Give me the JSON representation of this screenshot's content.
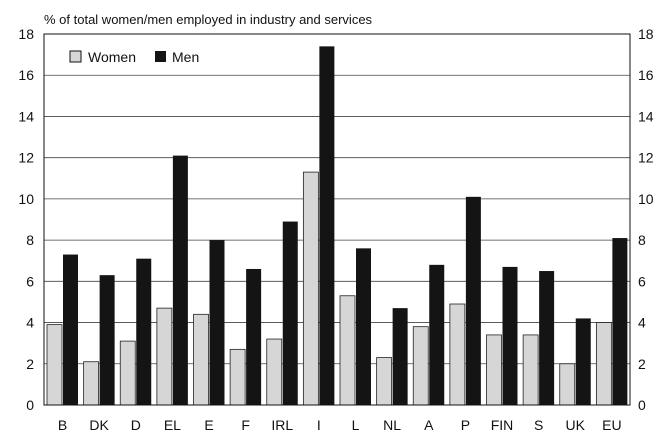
{
  "chart_data": {
    "type": "bar",
    "subtitle": "% of total women/men employed in industry and services",
    "categories": [
      "B",
      "DK",
      "D",
      "EL",
      "E",
      "F",
      "IRL",
      "I",
      "L",
      "NL",
      "A",
      "P",
      "FIN",
      "S",
      "UK",
      "EU"
    ],
    "series": [
      {
        "name": "Women",
        "color": "#d6d6d6",
        "values": [
          3.9,
          2.1,
          3.1,
          4.7,
          4.4,
          2.7,
          3.2,
          11.3,
          5.3,
          2.3,
          3.8,
          4.9,
          3.4,
          3.4,
          2.0,
          4.0
        ]
      },
      {
        "name": "Men",
        "color": "#141414",
        "values": [
          7.3,
          6.3,
          7.1,
          12.1,
          8.0,
          6.6,
          8.9,
          17.4,
          7.6,
          4.7,
          6.8,
          10.1,
          6.7,
          6.5,
          4.2,
          8.1
        ]
      }
    ],
    "ylim": [
      0,
      18
    ],
    "yticks": [
      0,
      2,
      4,
      6,
      8,
      10,
      12,
      14,
      16,
      18
    ],
    "grid": true,
    "legend_position": "top-left"
  }
}
